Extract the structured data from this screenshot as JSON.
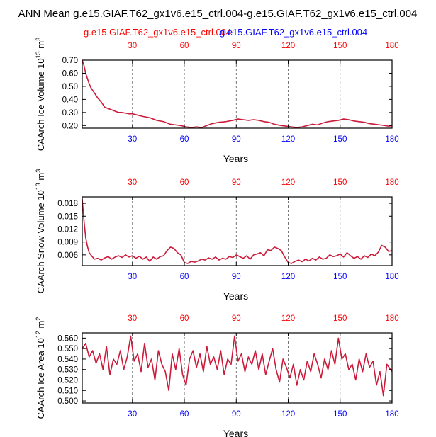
{
  "figure": {
    "title": "ANN Mean g.e15.GIAF.T62_gx1v6.e15_ctrl.004-g.e15.GIAF.T62_gx1v6.e15_ctrl.004",
    "legend_case1": "g.e15.GIAF.T62_gx1v6.e15_ctrl.004",
    "legend_case2": "g.e15.GIAF.T62_gx1v6.e15_ctrl.004",
    "colors": {
      "case1": "#ff0000",
      "case2": "#0000ff",
      "line": "#cc1a3a",
      "axis": "#000000",
      "grid": "#555555"
    }
  },
  "chart_data": [
    {
      "type": "line",
      "ylabel_pre": "CAArch Ice Volume 10",
      "ylabel_exp1": "13",
      "ylabel_mid": " m",
      "ylabel_exp2": "3",
      "xlabel": "Years",
      "xlim": [
        1,
        180
      ],
      "ylim": [
        0.18,
        0.7
      ],
      "yticks": [
        0.2,
        0.3,
        0.4,
        0.5,
        0.6,
        0.7
      ],
      "yticklabels": [
        "0.20",
        "0.30",
        "0.40",
        "0.50",
        "0.60",
        "0.70"
      ],
      "xticks": [
        30,
        60,
        90,
        120,
        150,
        180
      ],
      "xticklabels": [
        "30",
        "60",
        "90",
        "120",
        "150",
        "180"
      ],
      "series": [
        {
          "name": "g.e15.GIAF.T62_gx1v6.e15_ctrl.004",
          "x": [
            1,
            2,
            3,
            4,
            5,
            6,
            7,
            8,
            9,
            10,
            12,
            14,
            16,
            18,
            20,
            22,
            24,
            26,
            28,
            30,
            33,
            36,
            40,
            44,
            48,
            52,
            55,
            58,
            61,
            64,
            67,
            70,
            73,
            76,
            80,
            84,
            88,
            91,
            94,
            97,
            100,
            103,
            106,
            109,
            112,
            116,
            119,
            122,
            125,
            128,
            131,
            134,
            137,
            140,
            143,
            146,
            149,
            152,
            155,
            158,
            161,
            164,
            167,
            170,
            173,
            176,
            178,
            180
          ],
          "y": [
            0.7,
            0.66,
            0.6,
            0.56,
            0.52,
            0.49,
            0.47,
            0.45,
            0.43,
            0.41,
            0.38,
            0.34,
            0.33,
            0.32,
            0.31,
            0.3,
            0.3,
            0.295,
            0.29,
            0.29,
            0.28,
            0.27,
            0.26,
            0.24,
            0.23,
            0.21,
            0.205,
            0.2,
            0.19,
            0.185,
            0.19,
            0.185,
            0.2,
            0.215,
            0.225,
            0.23,
            0.24,
            0.25,
            0.245,
            0.24,
            0.245,
            0.24,
            0.23,
            0.225,
            0.21,
            0.2,
            0.195,
            0.19,
            0.185,
            0.19,
            0.2,
            0.21,
            0.205,
            0.22,
            0.23,
            0.235,
            0.24,
            0.25,
            0.245,
            0.235,
            0.23,
            0.225,
            0.215,
            0.21,
            0.205,
            0.2,
            0.195,
            0.2
          ]
        }
      ]
    },
    {
      "type": "line",
      "ylabel_pre": "CAArch Snow Volume 10",
      "ylabel_exp1": "13",
      "ylabel_mid": " m",
      "ylabel_exp2": "3",
      "xlabel": "Years",
      "xlim": [
        1,
        180
      ],
      "ylim": [
        0.0035,
        0.0195
      ],
      "yticks": [
        0.006,
        0.009,
        0.012,
        0.015,
        0.018
      ],
      "yticklabels": [
        "0.006",
        "0.009",
        "0.012",
        "0.015",
        "0.018"
      ],
      "xticks": [
        30,
        60,
        90,
        120,
        150,
        180
      ],
      "xticklabels": [
        "30",
        "60",
        "90",
        "120",
        "150",
        "180"
      ],
      "series": [
        {
          "name": "g.e15.GIAF.T62_gx1v6.e15_ctrl.004",
          "x": [
            1,
            2,
            3,
            4,
            5,
            6,
            7,
            8,
            10,
            12,
            14,
            16,
            18,
            20,
            22,
            24,
            26,
            28,
            30,
            32,
            34,
            36,
            38,
            40,
            42,
            44,
            46,
            48,
            50,
            52,
            54,
            56,
            58,
            60,
            62,
            64,
            66,
            68,
            70,
            72,
            74,
            76,
            78,
            80,
            82,
            84,
            86,
            88,
            90,
            92,
            94,
            96,
            98,
            100,
            102,
            104,
            106,
            108,
            110,
            112,
            114,
            116,
            118,
            120,
            122,
            124,
            126,
            128,
            130,
            132,
            134,
            136,
            138,
            140,
            142,
            144,
            146,
            148,
            150,
            152,
            154,
            156,
            158,
            160,
            162,
            164,
            166,
            168,
            170,
            172,
            174,
            176,
            178,
            180
          ],
          "y": [
            0.019,
            0.014,
            0.01,
            0.008,
            0.0065,
            0.006,
            0.0055,
            0.005,
            0.0052,
            0.0048,
            0.0053,
            0.0056,
            0.005,
            0.0055,
            0.0058,
            0.0054,
            0.006,
            0.0055,
            0.0058,
            0.0052,
            0.0057,
            0.005,
            0.0055,
            0.0045,
            0.0055,
            0.005,
            0.0056,
            0.0058,
            0.007,
            0.0078,
            0.0075,
            0.0065,
            0.006,
            0.0042,
            0.004,
            0.0045,
            0.0043,
            0.0046,
            0.005,
            0.0048,
            0.0053,
            0.005,
            0.0055,
            0.0048,
            0.0052,
            0.005,
            0.0056,
            0.0054,
            0.006,
            0.0056,
            0.0052,
            0.0058,
            0.005,
            0.006,
            0.0062,
            0.0065,
            0.0058,
            0.0072,
            0.007,
            0.0078,
            0.0075,
            0.007,
            0.0055,
            0.0042,
            0.004,
            0.0045,
            0.0048,
            0.0044,
            0.005,
            0.0046,
            0.0052,
            0.0048,
            0.0055,
            0.005,
            0.0052,
            0.006,
            0.0056,
            0.0058,
            0.0062,
            0.0055,
            0.0065,
            0.0058,
            0.0052,
            0.0056,
            0.005,
            0.0058,
            0.0054,
            0.0062,
            0.0058,
            0.0066,
            0.0082,
            0.0078,
            0.0068,
            0.007
          ]
        }
      ]
    },
    {
      "type": "line",
      "ylabel_pre": "CAArch Ice Area 10",
      "ylabel_exp1": "12",
      "ylabel_mid": " m",
      "ylabel_exp2": "2",
      "xlabel": "Years",
      "xlim": [
        1,
        180
      ],
      "ylim": [
        0.498,
        0.565
      ],
      "yticks": [
        0.5,
        0.51,
        0.52,
        0.53,
        0.54,
        0.55,
        0.56
      ],
      "yticklabels": [
        "0.500",
        "0.510",
        "0.520",
        "0.530",
        "0.540",
        "0.550",
        "0.560"
      ],
      "xticks": [
        30,
        60,
        90,
        120,
        150,
        180
      ],
      "xticklabels": [
        "30",
        "60",
        "90",
        "120",
        "150",
        "180"
      ],
      "series": [
        {
          "name": "g.e15.GIAF.T62_gx1v6.e15_ctrl.004",
          "x": [
            1,
            3,
            5,
            7,
            9,
            11,
            13,
            15,
            17,
            19,
            21,
            23,
            25,
            27,
            29,
            31,
            33,
            35,
            37,
            39,
            41,
            43,
            45,
            47,
            49,
            51,
            53,
            55,
            57,
            59,
            61,
            63,
            65,
            67,
            69,
            71,
            73,
            75,
            77,
            79,
            81,
            83,
            85,
            87,
            89,
            91,
            93,
            95,
            97,
            99,
            101,
            103,
            105,
            107,
            109,
            111,
            113,
            115,
            117,
            119,
            121,
            123,
            125,
            127,
            129,
            131,
            133,
            135,
            137,
            139,
            141,
            143,
            145,
            147,
            149,
            151,
            153,
            155,
            157,
            159,
            161,
            163,
            165,
            167,
            169,
            171,
            173,
            175,
            177,
            180
          ],
          "y": [
            0.55,
            0.555,
            0.542,
            0.548,
            0.536,
            0.545,
            0.53,
            0.552,
            0.525,
            0.54,
            0.535,
            0.548,
            0.53,
            0.542,
            0.562,
            0.538,
            0.545,
            0.528,
            0.555,
            0.532,
            0.54,
            0.52,
            0.548,
            0.535,
            0.528,
            0.51,
            0.545,
            0.53,
            0.55,
            0.525,
            0.515,
            0.54,
            0.548,
            0.532,
            0.545,
            0.528,
            0.552,
            0.535,
            0.542,
            0.53,
            0.548,
            0.525,
            0.54,
            0.535,
            0.562,
            0.538,
            0.545,
            0.528,
            0.542,
            0.535,
            0.548,
            0.53,
            0.545,
            0.525,
            0.538,
            0.55,
            0.53,
            0.518,
            0.54,
            0.532,
            0.522,
            0.535,
            0.515,
            0.53,
            0.52,
            0.538,
            0.528,
            0.545,
            0.535,
            0.522,
            0.54,
            0.53,
            0.548,
            0.535,
            0.56,
            0.54,
            0.545,
            0.53,
            0.535,
            0.52,
            0.54,
            0.528,
            0.545,
            0.532,
            0.538,
            0.515,
            0.528,
            0.505,
            0.535,
            0.528
          ]
        }
      ]
    }
  ]
}
